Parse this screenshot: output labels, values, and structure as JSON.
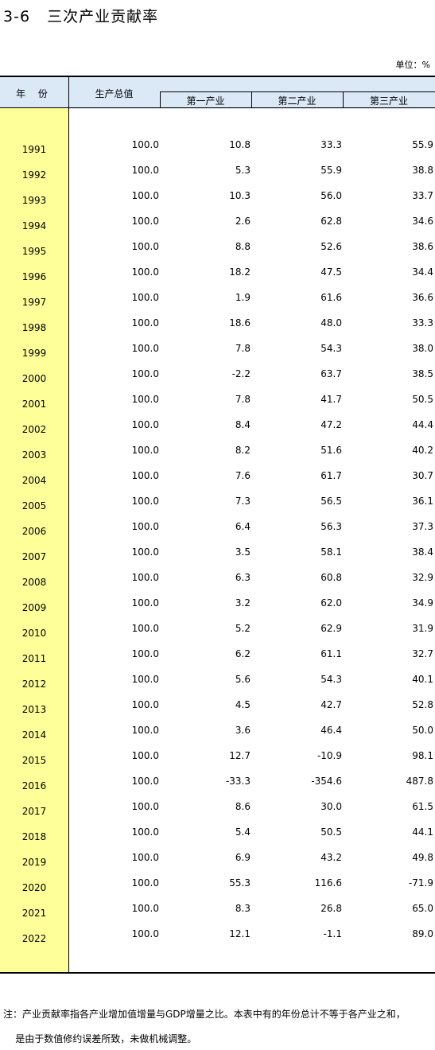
{
  "title": "3-6   三次产业贡献率",
  "unit": "单位：%",
  "headers": {
    "year": "年 份",
    "gdp": "生产总值",
    "primary": "第一产业",
    "secondary": "第二产业",
    "tertiary": "第三产业"
  },
  "rows": [
    [
      "1991",
      "100.0",
      "10.8",
      "33.3",
      "55.9"
    ],
    [
      "1992",
      "100.0",
      "5.3",
      "55.9",
      "38.8"
    ],
    [
      "1993",
      "100.0",
      "10.3",
      "56.0",
      "33.7"
    ],
    [
      "1994",
      "100.0",
      "2.6",
      "62.8",
      "34.6"
    ],
    [
      "1995",
      "100.0",
      "8.8",
      "52.6",
      "38.6"
    ],
    [
      "1996",
      "100.0",
      "18.2",
      "47.5",
      "34.4"
    ],
    [
      "1997",
      "100.0",
      "1.9",
      "61.6",
      "36.6"
    ],
    [
      "1998",
      "100.0",
      "18.6",
      "48.0",
      "33.3"
    ],
    [
      "1999",
      "100.0",
      "7.8",
      "54.3",
      "38.0"
    ],
    [
      "2000",
      "100.0",
      "-2.2",
      "63.7",
      "38.5"
    ],
    [
      "2001",
      "100.0",
      "7.8",
      "41.7",
      "50.5"
    ],
    [
      "2002",
      "100.0",
      "8.4",
      "47.2",
      "44.4"
    ],
    [
      "2003",
      "100.0",
      "8.2",
      "51.6",
      "40.2"
    ],
    [
      "2004",
      "100.0",
      "7.6",
      "61.7",
      "30.7"
    ],
    [
      "2005",
      "100.0",
      "7.3",
      "56.5",
      "36.1"
    ],
    [
      "2006",
      "100.0",
      "6.4",
      "56.3",
      "37.3"
    ],
    [
      "2007",
      "100.0",
      "3.5",
      "58.1",
      "38.4"
    ],
    [
      "2008",
      "100.0",
      "6.3",
      "60.8",
      "32.9"
    ],
    [
      "2009",
      "100.0",
      "3.2",
      "62.0",
      "34.9"
    ],
    [
      "2010",
      "100.0",
      "5.2",
      "62.9",
      "31.9"
    ],
    [
      "2011",
      "100.0",
      "6.2",
      "61.1",
      "32.7"
    ],
    [
      "2012",
      "100.0",
      "5.6",
      "54.3",
      "40.1"
    ],
    [
      "2013",
      "100.0",
      "4.5",
      "42.7",
      "52.8"
    ],
    [
      "2014",
      "100.0",
      "3.6",
      "46.4",
      "50.0"
    ],
    [
      "2015",
      "100.0",
      "12.7",
      "-10.9",
      "98.1"
    ],
    [
      "2016",
      "100.0",
      "-33.3",
      "-354.6",
      "487.8"
    ],
    [
      "2017",
      "100.0",
      "8.6",
      "30.0",
      "61.5"
    ],
    [
      "2018",
      "100.0",
      "5.4",
      "50.5",
      "44.1"
    ],
    [
      "2019",
      "100.0",
      "6.9",
      "43.2",
      "49.8"
    ],
    [
      "2020",
      "100.0",
      "55.3",
      "116.6",
      "-71.9"
    ],
    [
      "2021",
      "100.0",
      "8.3",
      "26.8",
      "65.0"
    ],
    [
      "2022",
      "100.0",
      "12.1",
      "-1.1",
      "89.0"
    ]
  ],
  "notes": {
    "line1": "注：产业贡献率指各产业增加值增量与GDP增量之比。本表中有的年份总计不等于各产业之和，",
    "line2": "    是由于数值修约误差所致，未做机械调整。"
  }
}
